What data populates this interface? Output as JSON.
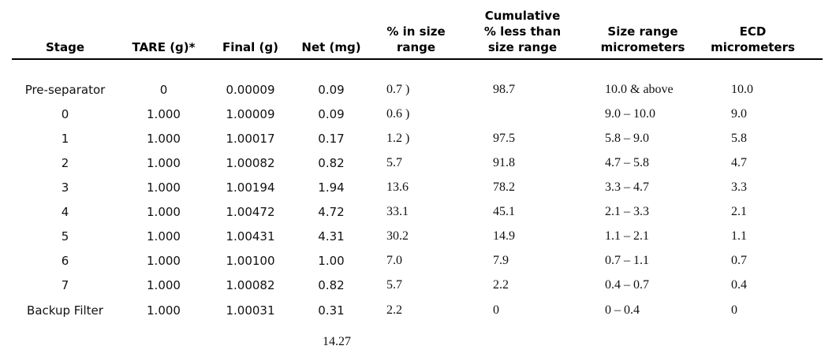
{
  "document": {
    "background": "#ffffff",
    "text_color": "#111111",
    "rule_color": "#000000"
  },
  "table": {
    "headers": [
      "Stage",
      "TARE (g)*",
      "Final (g)",
      "Net (mg)",
      "% in size\nrange",
      "Cumulative\n% less than\nsize range",
      "Size range\nmicrometers",
      "ECD\nmicrometers"
    ],
    "rows": [
      [
        "Pre-separator",
        "0",
        "0.00009",
        "0.09",
        "0.7 )",
        "98.7",
        "10.0 & above",
        "10.0"
      ],
      [
        "0",
        "1.000",
        "1.00009",
        "0.09",
        "0.6 )",
        "",
        "9.0 – 10.0",
        "9.0"
      ],
      [
        "1",
        "1.000",
        "1.00017",
        "0.17",
        "1.2 )",
        "97.5",
        "5.8 – 9.0",
        "5.8"
      ],
      [
        "2",
        "1.000",
        "1.00082",
        "0.82",
        "5.7",
        "91.8",
        "4.7 – 5.8",
        "4.7"
      ],
      [
        "3",
        "1.000",
        "1.00194",
        "1.94",
        "13.6",
        "78.2",
        "3.3 – 4.7",
        "3.3"
      ],
      [
        "4",
        "1.000",
        "1.00472",
        "4.72",
        "33.1",
        "45.1",
        "2.1 – 3.3",
        "2.1"
      ],
      [
        "5",
        "1.000",
        "1.00431",
        "4.31",
        "30.2",
        "14.9",
        "1.1 – 2.1",
        "1.1"
      ],
      [
        "6",
        "1.000",
        "1.00100",
        "1.00",
        "7.0",
        "7.9",
        "0.7 – 1.1",
        "0.7"
      ],
      [
        "7",
        "1.000",
        "1.00082",
        "0.82",
        "5.7",
        "2.2",
        "0.4 – 0.7",
        "0.4"
      ],
      [
        "Backup Filter",
        "1.000",
        "1.00031",
        "0.31",
        "2.2",
        "0",
        "0 – 0.4",
        "0"
      ]
    ],
    "net_total": "14.27"
  }
}
